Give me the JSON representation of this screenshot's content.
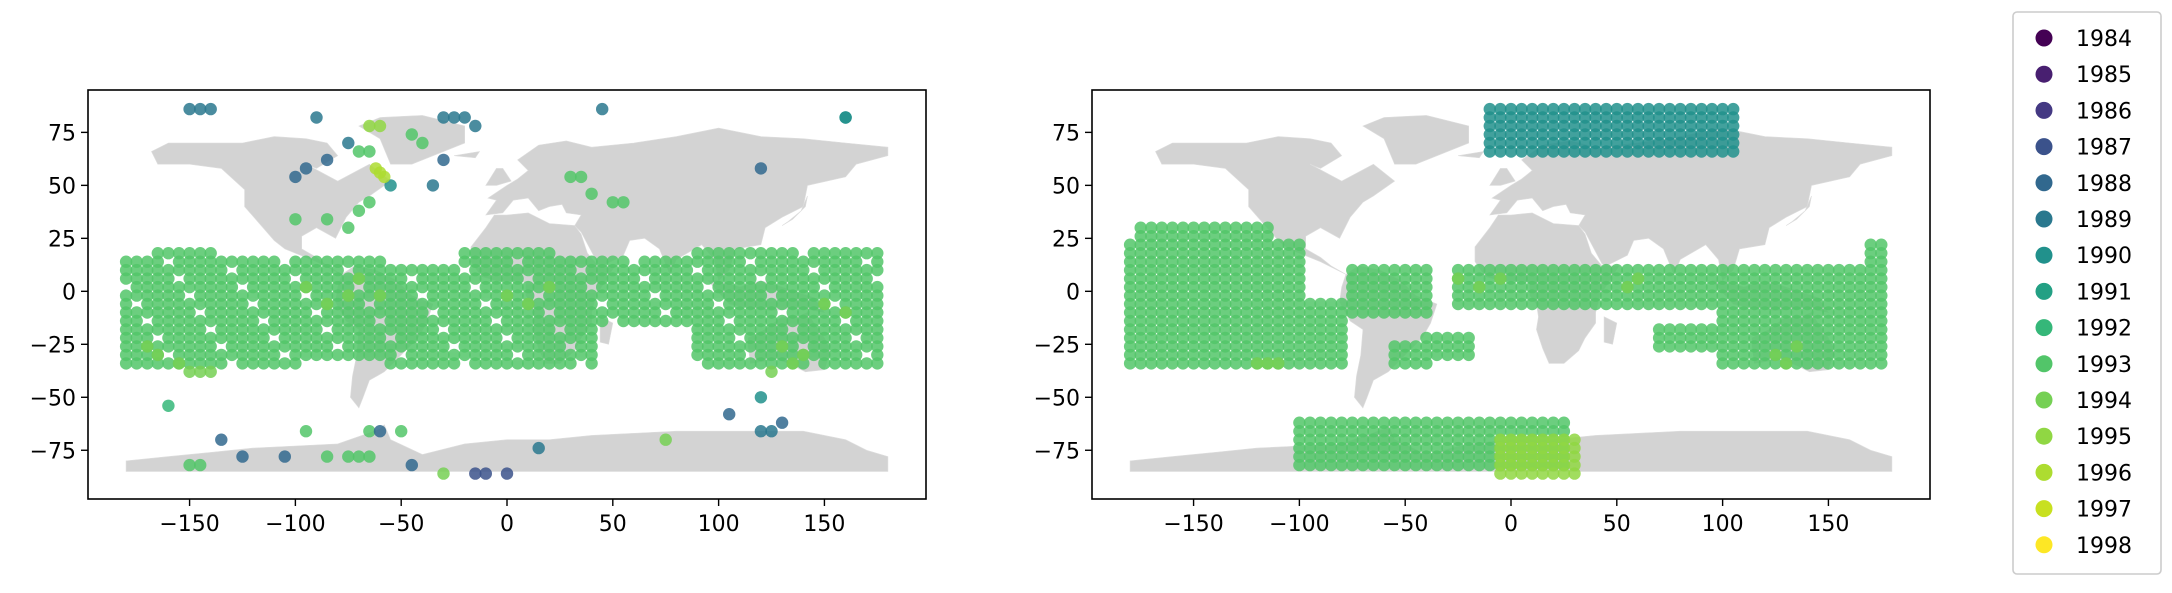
{
  "colors": {
    "land": "#d3d3d3",
    "year_colors": {
      "1984": "#440154",
      "1985": "#481f70",
      "1986": "#443983",
      "1987": "#3b528b",
      "1988": "#31688e",
      "1989": "#2a788e",
      "1990": "#21918c",
      "1991": "#23a084",
      "1992": "#35b779",
      "1993": "#52c569",
      "1994": "#75d054",
      "1995": "#90d743",
      "1996": "#addc30",
      "1997": "#c8e020",
      "1998": "#fde725"
    }
  },
  "chart_data": [
    {
      "type": "scatter",
      "panel": "left",
      "title": "",
      "xlabel": "",
      "ylabel": "",
      "xlim": [
        -198,
        198
      ],
      "ylim": [
        -98,
        95
      ],
      "xticks": [
        -150,
        -100,
        -50,
        0,
        50,
        100,
        150
      ],
      "yticks": [
        75,
        50,
        25,
        0,
        -25,
        -50,
        -75
      ],
      "grid": false,
      "dominant_year": "1993",
      "scattered_points": [
        {
          "x": -150,
          "y": 86,
          "year": "1989"
        },
        {
          "x": -145,
          "y": 86,
          "year": "1989"
        },
        {
          "x": -140,
          "y": 86,
          "year": "1989"
        },
        {
          "x": -90,
          "y": 82,
          "year": "1989"
        },
        {
          "x": -30,
          "y": 82,
          "year": "1989"
        },
        {
          "x": -25,
          "y": 82,
          "year": "1989"
        },
        {
          "x": -20,
          "y": 82,
          "year": "1989"
        },
        {
          "x": -15,
          "y": 78,
          "year": "1989"
        },
        {
          "x": 45,
          "y": 86,
          "year": "1989"
        },
        {
          "x": 160,
          "y": 82,
          "year": "1990"
        },
        {
          "x": 120,
          "y": 58,
          "year": "1988"
        },
        {
          "x": -100,
          "y": 54,
          "year": "1988"
        },
        {
          "x": -95,
          "y": 58,
          "year": "1988"
        },
        {
          "x": -85,
          "y": 62,
          "year": "1988"
        },
        {
          "x": -75,
          "y": 70,
          "year": "1989"
        },
        {
          "x": -30,
          "y": 62,
          "year": "1988"
        },
        {
          "x": -35,
          "y": 50,
          "year": "1989"
        },
        {
          "x": -55,
          "y": 50,
          "year": "1990"
        },
        {
          "x": -60,
          "y": 56,
          "year": "1996"
        },
        {
          "x": -62,
          "y": 58,
          "year": "1996"
        },
        {
          "x": -58,
          "y": 54,
          "year": "1996"
        },
        {
          "x": -65,
          "y": 78,
          "year": "1995"
        },
        {
          "x": -60,
          "y": 78,
          "year": "1995"
        },
        {
          "x": -70,
          "y": 66,
          "year": "1993"
        },
        {
          "x": -65,
          "y": 66,
          "year": "1993"
        },
        {
          "x": -45,
          "y": 74,
          "year": "1993"
        },
        {
          "x": -40,
          "y": 70,
          "year": "1993"
        },
        {
          "x": -100,
          "y": 34,
          "year": "1993"
        },
        {
          "x": -85,
          "y": 34,
          "year": "1993"
        },
        {
          "x": -75,
          "y": 30,
          "year": "1993"
        },
        {
          "x": -70,
          "y": 38,
          "year": "1993"
        },
        {
          "x": -65,
          "y": 42,
          "year": "1993"
        },
        {
          "x": 30,
          "y": 54,
          "year": "1993"
        },
        {
          "x": 35,
          "y": 54,
          "year": "1993"
        },
        {
          "x": 40,
          "y": 46,
          "year": "1993"
        },
        {
          "x": 50,
          "y": 42,
          "year": "1993"
        },
        {
          "x": 55,
          "y": 42,
          "year": "1993"
        },
        {
          "x": -160,
          "y": -54,
          "year": "1992"
        },
        {
          "x": -135,
          "y": -70,
          "year": "1988"
        },
        {
          "x": -125,
          "y": -78,
          "year": "1988"
        },
        {
          "x": -105,
          "y": -78,
          "year": "1988"
        },
        {
          "x": -95,
          "y": -66,
          "year": "1993"
        },
        {
          "x": -65,
          "y": -66,
          "year": "1993"
        },
        {
          "x": -60,
          "y": -66,
          "year": "1988"
        },
        {
          "x": -50,
          "y": -66,
          "year": "1993"
        },
        {
          "x": -45,
          "y": -82,
          "year": "1988"
        },
        {
          "x": -15,
          "y": -86,
          "year": "1987"
        },
        {
          "x": -10,
          "y": -86,
          "year": "1987"
        },
        {
          "x": 0,
          "y": -86,
          "year": "1987"
        },
        {
          "x": 15,
          "y": -74,
          "year": "1989"
        },
        {
          "x": 75,
          "y": -70,
          "year": "1994"
        },
        {
          "x": 105,
          "y": -58,
          "year": "1988"
        },
        {
          "x": 120,
          "y": -50,
          "year": "1990"
        },
        {
          "x": 120,
          "y": -66,
          "year": "1989"
        },
        {
          "x": 125,
          "y": -66,
          "year": "1989"
        },
        {
          "x": 130,
          "y": -62,
          "year": "1988"
        },
        {
          "x": 160,
          "y": 82,
          "year": "1990"
        },
        {
          "x": -150,
          "y": -82,
          "year": "1993"
        },
        {
          "x": -145,
          "y": -82,
          "year": "1993"
        },
        {
          "x": -85,
          "y": -78,
          "year": "1993"
        },
        {
          "x": -75,
          "y": -78,
          "year": "1993"
        },
        {
          "x": -70,
          "y": -78,
          "year": "1993"
        },
        {
          "x": -65,
          "y": -78,
          "year": "1993"
        },
        {
          "x": -30,
          "y": -86,
          "year": "1994"
        }
      ]
    },
    {
      "type": "scatter",
      "panel": "right",
      "title": "",
      "xlabel": "",
      "ylabel": "",
      "xlim": [
        -198,
        198
      ],
      "ylim": [
        -98,
        95
      ],
      "xticks": [
        -150,
        -100,
        -50,
        0,
        50,
        100,
        150
      ],
      "yticks": [
        75,
        50,
        25,
        0,
        -25,
        -50,
        -75
      ],
      "grid": false,
      "dominant_year": "1993",
      "clusters": [
        {
          "year": "1990",
          "x": [
            -10,
            105
          ],
          "y": [
            66,
            86
          ]
        },
        {
          "year": "1993",
          "x": [
            -100,
            25
          ],
          "y": [
            -82,
            -62
          ]
        },
        {
          "year": "1995",
          "x": [
            -5,
            30
          ],
          "y": [
            -86,
            -70
          ]
        }
      ]
    }
  ],
  "legend": {
    "placement": "right",
    "entries": [
      "1984",
      "1985",
      "1986",
      "1987",
      "1988",
      "1989",
      "1990",
      "1991",
      "1992",
      "1993",
      "1994",
      "1995",
      "1996",
      "1997",
      "1998"
    ]
  }
}
